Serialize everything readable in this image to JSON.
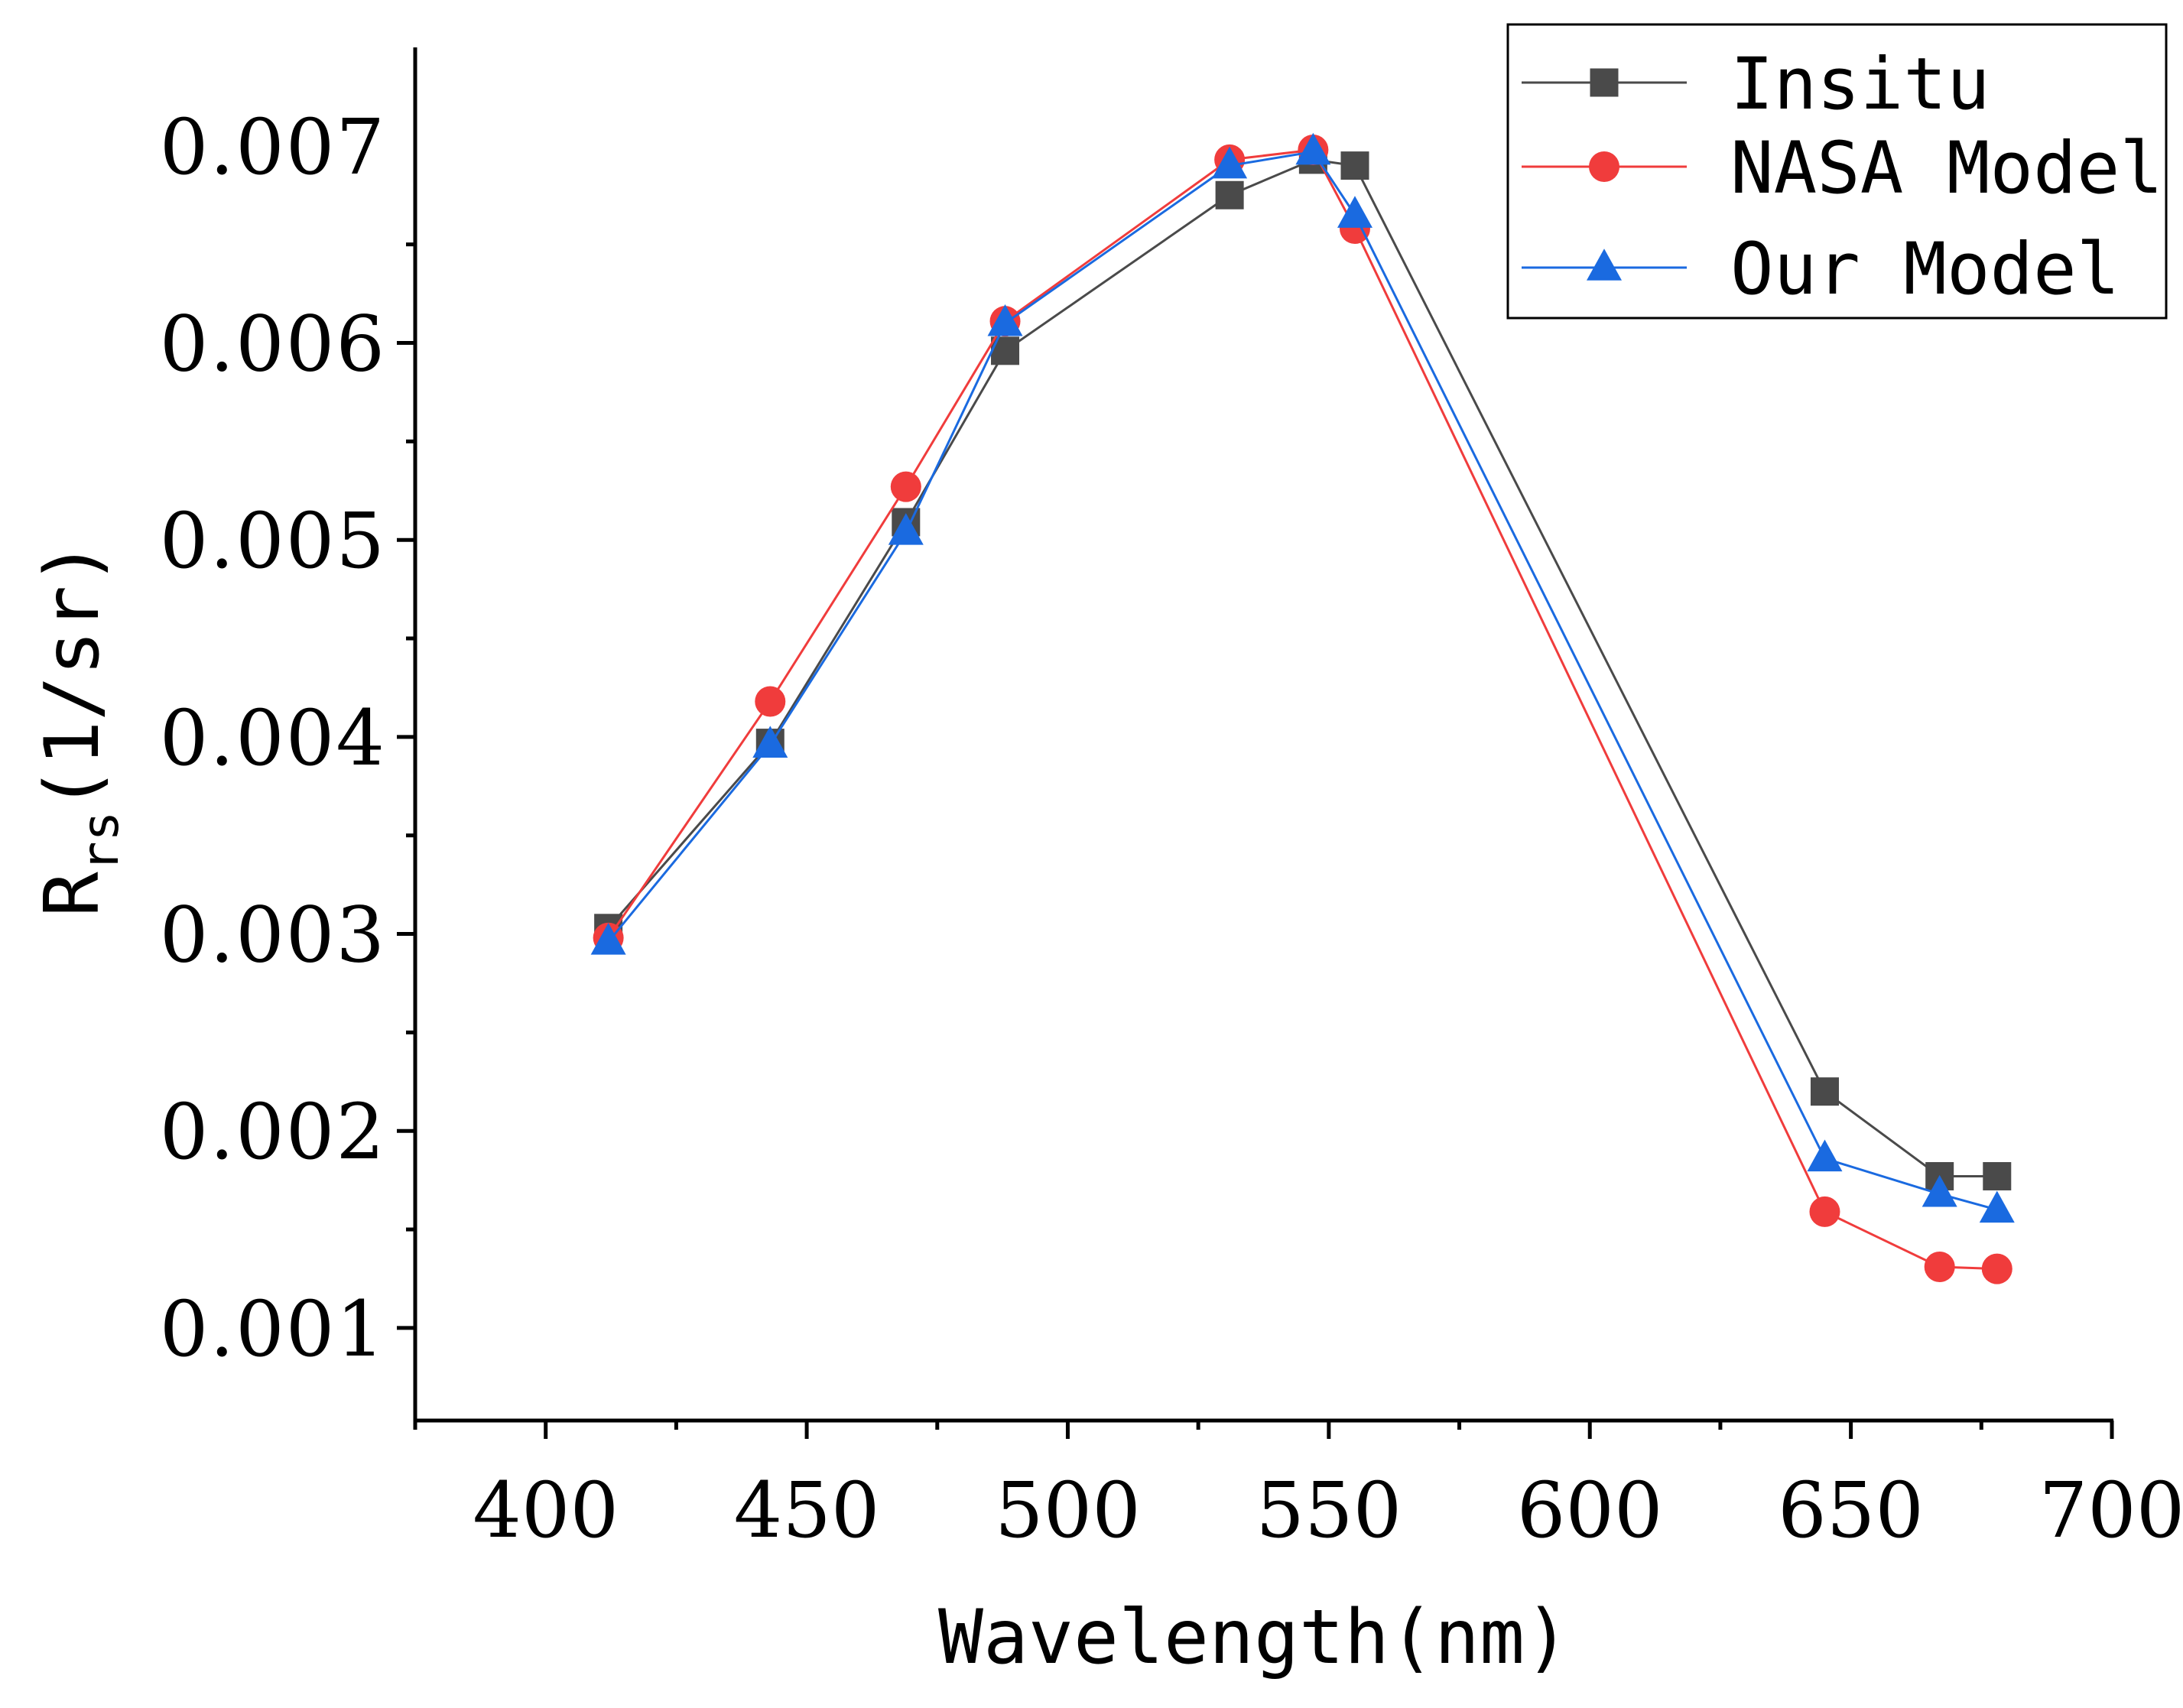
{
  "chart_data": {
    "type": "line",
    "title": "",
    "xlabel": "Wavelength(nm)",
    "ylabel": {
      "main": "R",
      "subscript": "rs",
      "unit": "(1/sr)"
    },
    "xlim": [
      375,
      700
    ],
    "ylim": [
      0.00053,
      0.0075
    ],
    "x_ticks": [
      400,
      450,
      500,
      550,
      600,
      650,
      700
    ],
    "x_tick_labels": [
      "400",
      "450",
      "500",
      "550",
      "600",
      "650",
      "700"
    ],
    "y_ticks": [
      0.001,
      0.002,
      0.003,
      0.004,
      0.005,
      0.006,
      0.007
    ],
    "y_tick_labels": [
      "0.001",
      "0.002",
      "0.003",
      "0.004",
      "0.005",
      "0.006",
      "0.007"
    ],
    "x": [
      412,
      443,
      469,
      488,
      531,
      547,
      555,
      645,
      667,
      678
    ],
    "series": [
      {
        "name": "Insitu",
        "color": "#4a4a4a",
        "marker": "square",
        "values": [
          0.00303,
          0.00397,
          0.00509,
          0.00596,
          0.00675,
          0.00693,
          0.0069,
          0.0022,
          0.00177,
          0.00177
        ]
      },
      {
        "name": "NASA Model",
        "color": "#f03c3c",
        "marker": "circle",
        "values": [
          0.00298,
          0.00418,
          0.00527,
          0.00611,
          0.00693,
          0.00698,
          0.00658,
          0.00159,
          0.00131,
          0.0013
        ]
      },
      {
        "name": "Our Model",
        "color": "#1a6ae0",
        "marker": "triangle",
        "values": [
          0.00296,
          0.00396,
          0.00504,
          0.0061,
          0.0069,
          0.00697,
          0.00665,
          0.00186,
          0.00168,
          0.0016
        ]
      }
    ],
    "legend": {
      "position": "top-right",
      "entries": [
        "Insitu",
        "NASA Model",
        "Our Model"
      ]
    },
    "grid": false
  }
}
